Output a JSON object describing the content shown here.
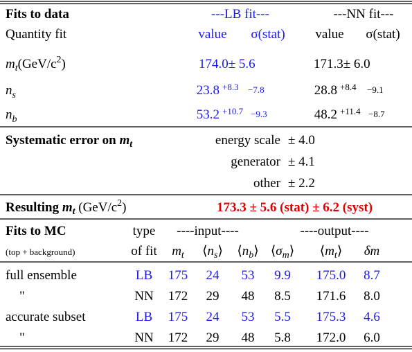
{
  "fits_to_data": {
    "title": "Fits to data",
    "lb_header": "---LB fit---",
    "nn_header": "---NN fit---",
    "quantity_header": "Quantity fit",
    "lb_value_header": "value",
    "lb_stat_header": "σ(stat)",
    "nn_value_header": "value",
    "nn_stat_header": "σ(stat)",
    "mt_row": {
      "symbol": "m",
      "sub": "t",
      "unit": "(GeV/c",
      "unit_sup": "2",
      "unit_close": ")",
      "lb_value": "174.0",
      "lb_err": "± 5.6",
      "nn_value": "171.3",
      "nn_err": "± 6.0"
    },
    "ns_row": {
      "symbol": "n",
      "sub": "s",
      "lb_value": "23.8",
      "lb_plus": "+8.3",
      "lb_minus": "−7.8",
      "nn_value": "28.8",
      "nn_plus": "+8.4",
      "nn_minus": "−9.1"
    },
    "nb_row": {
      "symbol": "n",
      "sub": "b",
      "lb_value": "53.2",
      "lb_plus": "+10.7",
      "lb_minus": "−9.3",
      "nn_value": "48.2",
      "nn_plus": "+11.4",
      "nn_minus": "−8.7"
    }
  },
  "systematics": {
    "title": "Systematic error on ",
    "symbol": "m",
    "sub": "t",
    "rows": [
      {
        "source": "energy scale",
        "err": "± 4.0"
      },
      {
        "source": "generator",
        "err": "± 4.1"
      },
      {
        "source": "other",
        "err": "± 2.2"
      }
    ]
  },
  "result": {
    "label": "Resulting ",
    "symbol": "m",
    "sub": "t",
    "unit": " (GeV/c",
    "unit_sup": "2",
    "unit_close": ")",
    "value": "173.3 ± 5.6 (stat) ± 6.2 (syst)"
  },
  "fits_to_mc": {
    "title": "Fits to MC",
    "subtitle": "(top + background)",
    "type_header": "type",
    "type_header2": "of fit",
    "input_header": "----input----",
    "output_header": "----output----",
    "columns": [
      {
        "open": "",
        "symbol": "m",
        "sub": "t",
        "close": ""
      },
      {
        "open": "⟨",
        "symbol": "n",
        "sub": "s",
        "close": "⟩"
      },
      {
        "open": "⟨",
        "symbol": "n",
        "sub": "b",
        "close": "⟩"
      },
      {
        "open": "⟨",
        "symbol": "σ",
        "sub": "m",
        "close": "⟩"
      },
      {
        "open": "⟨",
        "symbol": "m",
        "sub": "t",
        "close": "⟩"
      },
      {
        "open": "",
        "symbol": "δm",
        "sub": "",
        "close": ""
      }
    ],
    "rows": [
      {
        "sample": "full ensemble",
        "type": "LB",
        "values": [
          "175",
          "24",
          "53",
          "9.9",
          "175.0",
          "8.7"
        ]
      },
      {
        "sample": "\"",
        "type": "NN",
        "values": [
          "172",
          "29",
          "48",
          "8.5",
          "171.6",
          "8.0"
        ]
      },
      {
        "sample": "accurate subset",
        "type": "LB",
        "values": [
          "175",
          "24",
          "53",
          "5.5",
          "175.3",
          "4.6"
        ]
      },
      {
        "sample": "\"",
        "type": "NN",
        "values": [
          "172",
          "29",
          "48",
          "5.8",
          "172.0",
          "6.0"
        ]
      }
    ]
  }
}
